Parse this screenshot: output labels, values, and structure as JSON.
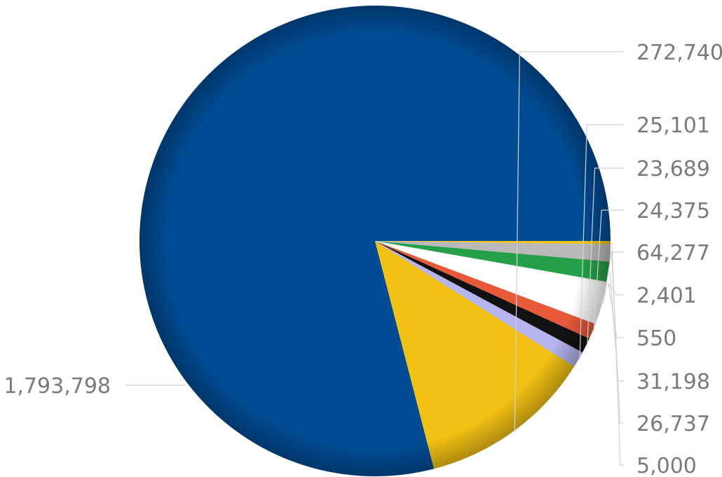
{
  "chart_data": {
    "type": "pie",
    "title": "",
    "start_angle_deg": 0,
    "direction": "counterclockwise",
    "slices": [
      {
        "value": 1793798,
        "label": "1,793,798",
        "color": "#004b93"
      },
      {
        "value": 272740,
        "label": "272,740",
        "color": "#f2c114"
      },
      {
        "value": 25101,
        "label": "25,101",
        "color": "#b4b4ee"
      },
      {
        "value": 23689,
        "label": "23,689",
        "color": "#111111"
      },
      {
        "value": 24375,
        "label": "24,375",
        "color": "#e8593a"
      },
      {
        "value": 64277,
        "label": "64,277",
        "color": "#ffffff"
      },
      {
        "value": 2401,
        "label": "2,401",
        "color": "#f4f4f4"
      },
      {
        "value": 550,
        "label": "550",
        "color": "#e0e0e0"
      },
      {
        "value": 31198,
        "label": "31,198",
        "color": "#24a148"
      },
      {
        "value": 26737,
        "label": "26,737",
        "color": "#b9b9b9"
      },
      {
        "value": 5000,
        "label": "5,000",
        "color": "#f2c114"
      }
    ]
  }
}
